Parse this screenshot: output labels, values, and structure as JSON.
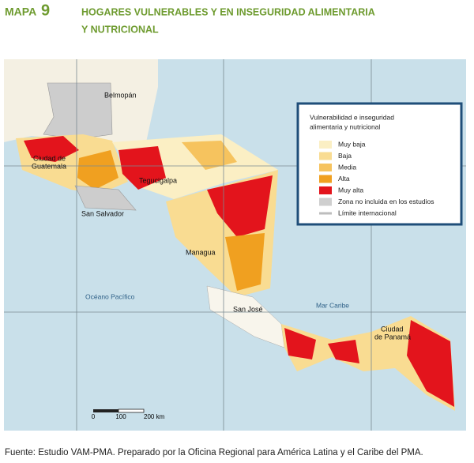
{
  "header": {
    "map_label": "MAPA",
    "map_number": "9",
    "title_line1": "HOGARES VULNERABLES Y EN INSEGURIDAD ALIMENTARIA",
    "title_line2": "Y NUTRICIONAL"
  },
  "map": {
    "places": [
      "Belmopán",
      "Ciudad de",
      "Guatemala",
      "Tegucigalpa",
      "San Salvador",
      "Managua",
      "San José",
      "Ciudad",
      "de Panamá"
    ],
    "water": [
      "Océano Pacífico",
      "Mar Caribe"
    ]
  },
  "legend": {
    "title_line1": "Vulnerabilidad e inseguridad",
    "title_line2": "alimentaria y nutricional",
    "items": [
      {
        "label": "Muy baja",
        "color": "#fbefc4"
      },
      {
        "label": "Baja",
        "color": "#f9dc92"
      },
      {
        "label": "Media",
        "color": "#f6c35e"
      },
      {
        "label": "Alta",
        "color": "#f0a020"
      },
      {
        "label": "Muy alta",
        "color": "#e3141c"
      },
      {
        "label": "Zona no incluida en los estudios",
        "color": "#cfcfcf"
      },
      {
        "label": "Límite internacional",
        "color": "#bdbdbd"
      }
    ]
  },
  "scale": {
    "labels": [
      "0",
      "100",
      "200 km"
    ]
  },
  "source": "Fuente: Estudio VAM-PMA. Preparado por la Oficina Regional para América Latina y el Caribe del PMA."
}
